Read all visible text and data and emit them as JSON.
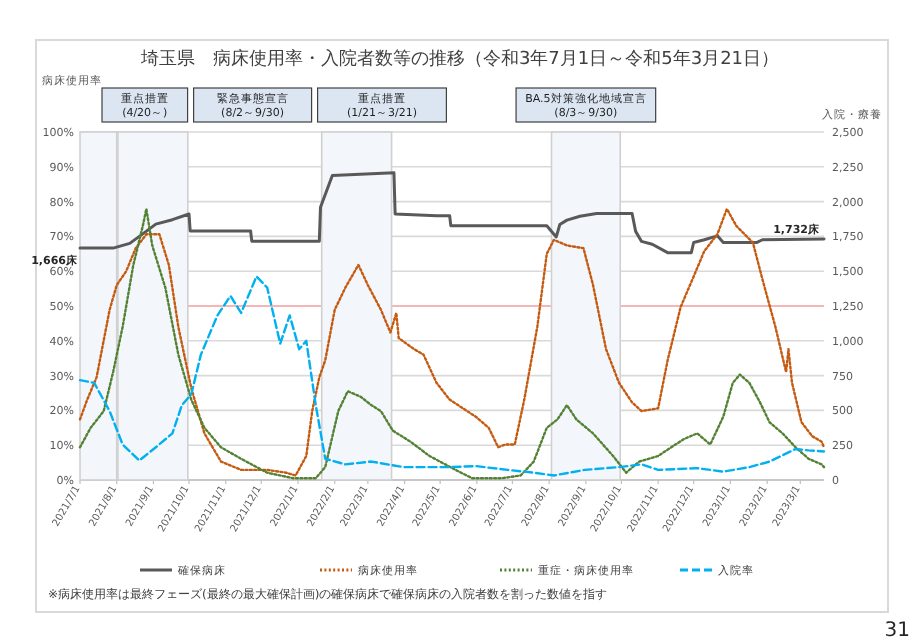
{
  "chart_data": {
    "type": "line",
    "title": "埼玉県　病床使用率・入院者数等の推移（令和3年7月1日～令和5年3月21日）",
    "ylabel": "病床使用率",
    "y2label": "入院・療養",
    "xlim": [
      "2021-07-01",
      "2023-03-21"
    ],
    "ylim": [
      0,
      100
    ],
    "yticks": [
      {
        "value": 0,
        "label": "0%"
      },
      {
        "value": 10,
        "label": "10%"
      },
      {
        "value": 20,
        "label": "20%"
      },
      {
        "value": 30,
        "label": "30%"
      },
      {
        "value": 40,
        "label": "40%"
      },
      {
        "value": 50,
        "label": "50%"
      },
      {
        "value": 60,
        "label": "60%"
      },
      {
        "value": 70,
        "label": "70%"
      },
      {
        "value": 80,
        "label": "80%"
      },
      {
        "value": 90,
        "label": "90%"
      },
      {
        "value": 100,
        "label": "100%"
      }
    ],
    "y2lim": [
      0,
      2500
    ],
    "y2ticks": [
      0,
      {
        "value": 250,
        "label": "250"
      },
      {
        "value": 500,
        "label": "500"
      },
      {
        "value": 750,
        "label": "750"
      },
      {
        "value": 1000,
        "label": "1,000"
      },
      {
        "value": 1250,
        "label": "1,250"
      },
      {
        "value": 1500,
        "label": "1,500"
      },
      {
        "value": 1750,
        "label": "1,750"
      },
      {
        "value": 2000,
        "label": "2,000"
      },
      {
        "value": 2250,
        "label": "2,250"
      },
      {
        "value": 2500,
        "label": "2,500"
      }
    ],
    "xticks": [
      {
        "value": "2021-07-01",
        "label": "2021/7/1"
      },
      {
        "value": "2021-08-01",
        "label": "2021/8/1"
      },
      {
        "value": "2021-09-01",
        "label": "2021/9/1"
      },
      {
        "value": "2021-10-01",
        "label": "2021/10/1"
      },
      {
        "value": "2021-11-01",
        "label": "2021/11/1"
      },
      {
        "value": "2021-12-01",
        "label": "2021/12/1"
      },
      {
        "value": "2022-01-01",
        "label": "2022/1/1"
      },
      {
        "value": "2022-02-01",
        "label": "2022/2/1"
      },
      {
        "value": "2022-03-01",
        "label": "2022/3/1"
      },
      {
        "value": "2022-04-01",
        "label": "2022/4/1"
      },
      {
        "value": "2022-05-01",
        "label": "2022/5/1"
      },
      {
        "value": "2022-06-01",
        "label": "2022/6/1"
      },
      {
        "value": "2022-07-01",
        "label": "2022/7/1"
      },
      {
        "value": "2022-08-01",
        "label": "2022/8/1"
      },
      {
        "value": "2022-09-01",
        "label": "2022/9/1"
      },
      {
        "value": "2022-10-01",
        "label": "2022/10/1"
      },
      {
        "value": "2022-11-01",
        "label": "2022/11/1"
      },
      {
        "value": "2022-12-01",
        "label": "2022/12/1"
      },
      {
        "value": "2023-01-01",
        "label": "2023/1/1"
      },
      {
        "value": "2023-02-01",
        "label": "2023/2/1"
      },
      {
        "value": "2023-03-01",
        "label": "2023/3/1"
      }
    ],
    "grid": "y",
    "legend": "bottom",
    "marker": "none",
    "series": [
      {
        "name": "確保病床",
        "color": "#595959",
        "axis": "y2",
        "line_style": "solid",
        "x": [
          "2021-07-01",
          "2021-07-29",
          "2021-08-12",
          "2021-08-23",
          "2021-09-03",
          "2021-09-17",
          "2021-10-01",
          "2021-10-02",
          "2021-11-22",
          "2021-11-23",
          "2022-01-19",
          "2022-01-20",
          "2022-01-30",
          "2022-03-23",
          "2022-03-24",
          "2022-04-28",
          "2022-05-09",
          "2022-05-10",
          "2022-07-30",
          "2022-08-07",
          "2022-08-10",
          "2022-08-16",
          "2022-08-27",
          "2022-09-10",
          "2022-10-10",
          "2022-10-13",
          "2022-10-18",
          "2022-10-27",
          "2022-11-09",
          "2022-11-29",
          "2022-12-01",
          "2022-12-10",
          "2022-12-21",
          "2022-12-26",
          "2023-01-23",
          "2023-01-28",
          "2023-03-21"
        ],
        "values": [
          1666,
          1666,
          1700,
          1768,
          1838,
          1870,
          1911,
          1789,
          1789,
          1716,
          1716,
          1960,
          2187,
          2207,
          1911,
          1899,
          1899,
          1827,
          1827,
          1746,
          1835,
          1867,
          1895,
          1915,
          1915,
          1786,
          1714,
          1694,
          1633,
          1633,
          1706,
          1726,
          1754,
          1706,
          1706,
          1726,
          1732
        ]
      },
      {
        "name": "病床使用率",
        "color": "#c55a11",
        "axis": "y",
        "line_style": "dotted",
        "x": [
          "2021-07-01",
          "2021-07-07",
          "2021-07-15",
          "2021-07-26",
          "2021-08-01",
          "2021-08-09",
          "2021-08-17",
          "2021-08-26",
          "2021-09-06",
          "2021-09-14",
          "2021-09-22",
          "2021-10-03",
          "2021-10-14",
          "2021-10-28",
          "2021-11-14",
          "2021-12-06",
          "2021-12-22",
          "2021-12-30",
          "2022-01-08",
          "2022-01-13",
          "2022-01-19",
          "2022-01-24",
          "2022-02-01",
          "2022-02-10",
          "2022-02-21",
          "2022-03-01",
          "2022-03-12",
          "2022-03-20",
          "2022-03-25",
          "2022-03-27",
          "2022-04-09",
          "2022-04-17",
          "2022-04-28",
          "2022-05-09",
          "2022-05-31",
          "2022-06-11",
          "2022-06-19",
          "2022-06-25",
          "2022-07-03",
          "2022-07-11",
          "2022-07-22",
          "2022-07-30",
          "2022-08-05",
          "2022-08-16",
          "2022-08-30",
          "2022-09-07",
          "2022-09-18",
          "2022-09-29",
          "2022-10-10",
          "2022-10-18",
          "2022-11-01",
          "2022-11-09",
          "2022-11-20",
          "2022-12-01",
          "2022-12-10",
          "2022-12-21",
          "2022-12-29",
          "2023-01-06",
          "2023-01-20",
          "2023-01-28",
          "2023-02-08",
          "2023-02-17",
          "2023-02-19",
          "2023-02-22",
          "2023-03-02",
          "2023-03-11",
          "2023-03-19",
          "2023-03-21"
        ],
        "values": [
          17.4,
          23,
          29.5,
          48.9,
          56,
          60,
          66.6,
          70.6,
          70.6,
          61.8,
          44,
          26.3,
          13.4,
          5.3,
          2.9,
          2.9,
          2.1,
          1.3,
          6.9,
          19.8,
          29.5,
          34.4,
          48.9,
          55.3,
          61.8,
          56,
          48.9,
          42.4,
          48,
          40.8,
          37.6,
          36,
          27.9,
          23.1,
          18.2,
          15,
          9.4,
          10.2,
          10.2,
          23.1,
          44,
          65,
          69,
          67.4,
          66.6,
          56.1,
          37.6,
          27.9,
          22.3,
          19.8,
          20.6,
          34.4,
          49.7,
          58.5,
          65.8,
          70.6,
          77.9,
          73,
          68.2,
          57.7,
          44,
          31,
          37.6,
          27.9,
          16.6,
          12.6,
          11,
          9.4
        ]
      },
      {
        "name": "重症・病床使用率",
        "color": "#548235",
        "axis": "y",
        "line_style": "dotted",
        "x": [
          "2021-07-01",
          "2021-07-10",
          "2021-07-21",
          "2021-07-29",
          "2021-08-06",
          "2021-08-15",
          "2021-08-23",
          "2021-08-26",
          "2021-08-31",
          "2021-09-11",
          "2021-09-22",
          "2021-10-03",
          "2021-10-14",
          "2021-10-28",
          "2021-11-14",
          "2021-12-06",
          "2021-12-28",
          "2022-01-16",
          "2022-01-24",
          "2022-02-04",
          "2022-02-12",
          "2022-02-23",
          "2022-03-04",
          "2022-03-12",
          "2022-03-22",
          "2022-04-06",
          "2022-04-22",
          "2022-05-14",
          "2022-05-28",
          "2022-06-22",
          "2022-07-08",
          "2022-07-19",
          "2022-07-30",
          "2022-08-08",
          "2022-08-16",
          "2022-08-24",
          "2022-09-07",
          "2022-09-24",
          "2022-10-05",
          "2022-10-16",
          "2022-11-01",
          "2022-11-12",
          "2022-11-23",
          "2022-12-04",
          "2022-12-15",
          "2022-12-26",
          "2023-01-03",
          "2023-01-09",
          "2023-01-17",
          "2023-01-26",
          "2023-02-03",
          "2023-02-14",
          "2023-02-25",
          "2023-03-08",
          "2023-03-19",
          "2023-03-21"
        ],
        "values": [
          9.4,
          15,
          19.8,
          31.1,
          44,
          61.8,
          73,
          77.9,
          67.4,
          55.3,
          36,
          23,
          15,
          9.4,
          6.1,
          2.1,
          0.5,
          0.5,
          3.7,
          19.8,
          25.5,
          23.9,
          21.5,
          19.8,
          14.2,
          11,
          6.9,
          2.9,
          0.5,
          0.5,
          1.3,
          5.3,
          15,
          17.4,
          21.5,
          17.4,
          13.4,
          6.9,
          2.1,
          5.3,
          6.9,
          9.4,
          11.8,
          13.4,
          10.2,
          18.2,
          27.9,
          30.3,
          27.9,
          22.3,
          16.6,
          13.4,
          9.4,
          6.1,
          4.5,
          3.7
        ]
      },
      {
        "name": "入院率",
        "color": "#00b0f0",
        "axis": "y",
        "line_style": "dashed",
        "x": [
          "2021-07-01",
          "2021-07-13",
          "2021-07-26",
          "2021-08-06",
          "2021-08-20",
          "2021-09-03",
          "2021-09-17",
          "2021-09-25",
          "2021-10-03",
          "2021-10-11",
          "2021-10-25",
          "2021-11-05",
          "2021-11-14",
          "2021-11-27",
          "2021-12-06",
          "2021-12-17",
          "2021-12-25",
          "2022-01-02",
          "2022-01-08",
          "2022-01-16",
          "2022-01-24",
          "2022-02-10",
          "2022-03-04",
          "2022-03-31",
          "2022-05-09",
          "2022-05-31",
          "2022-06-27",
          "2022-07-19",
          "2022-08-05",
          "2022-08-31",
          "2022-09-29",
          "2022-10-18",
          "2022-11-01",
          "2022-12-04",
          "2022-12-26",
          "2023-01-17",
          "2023-02-03",
          "2023-02-25",
          "2023-03-08",
          "2023-03-21"
        ],
        "values": [
          28.7,
          27.9,
          19.8,
          10.2,
          5.6,
          9.4,
          13.4,
          21.5,
          24.7,
          36,
          47.3,
          52.9,
          48,
          58.5,
          55.3,
          39.2,
          47.3,
          37.6,
          40,
          21.5,
          6.1,
          4.5,
          5.3,
          3.7,
          3.7,
          4,
          2.9,
          2.1,
          1.3,
          2.9,
          3.7,
          4.5,
          2.9,
          3.4,
          2.4,
          3.7,
          5.3,
          8.9,
          8.5,
          8.2
        ]
      }
    ],
    "ref_lines": [
      {
        "axis": "y",
        "value": 50,
        "color": "#f4b6b6"
      }
    ],
    "bands": [
      {
        "axis": "x",
        "from": "2021-07-01",
        "to": "2021-08-01",
        "label": "重点措置\n(4/20～)"
      },
      {
        "axis": "x",
        "from": "2021-08-02",
        "to": "2021-09-30",
        "label": "緊急事態宣言\n(8/2～9/30)"
      },
      {
        "axis": "x",
        "from": "2022-01-21",
        "to": "2022-03-21",
        "label": "重点措置\n(1/21～3/21)"
      },
      {
        "axis": "x",
        "from": "2022-08-03",
        "to": "2022-09-30",
        "label": "BA.5対策強化地域宣言\n(8/3～9/30)"
      }
    ],
    "annotations": [
      "1,666床",
      "1,732床",
      "※病床使用率は最終フェーズ(最終の最大確保計画)の確保病床で確保病床の入院者数を割った数値を指す",
      "31"
    ]
  }
}
